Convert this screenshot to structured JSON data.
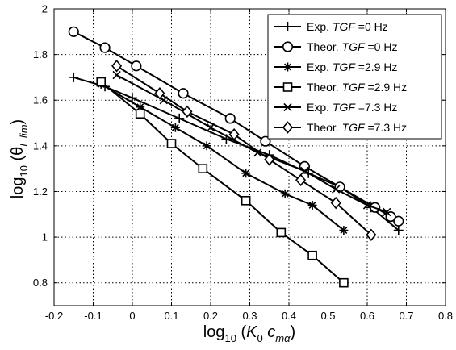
{
  "chart_data": {
    "type": "line",
    "title": "",
    "xlabel": {
      "prefix": "log",
      "sub": "10",
      "open": " (",
      "var1": "K",
      "var1_sub": "0",
      "var2": "c",
      "var2_sub": "mα",
      "close": ")"
    },
    "ylabel": {
      "prefix": "log",
      "sub": "10",
      "open": " (θ",
      "var_sub": "L lim",
      "close": ")"
    },
    "xlim": [
      -0.2,
      0.8
    ],
    "ylim": [
      0.7,
      2.0
    ],
    "xticks": [
      -0.2,
      -0.1,
      0,
      0.1,
      0.2,
      0.3,
      0.4,
      0.5,
      0.6,
      0.7,
      0.8
    ],
    "xtick_labels": [
      "-0.2",
      "-0.1",
      "0",
      "0.1",
      "0.2",
      "0.3",
      "0.4",
      "0.5",
      "0.6",
      "0.7",
      "0.8"
    ],
    "yticks": [
      0.8,
      1.0,
      1.2,
      1.4,
      1.6,
      1.8,
      2.0
    ],
    "ytick_labels": [
      "0.8",
      "1",
      "1.2",
      "1.4",
      "1.6",
      "1.8",
      "2"
    ],
    "grid": true,
    "legend_position": "top-right",
    "series": [
      {
        "legend_prefix": "Exp. ",
        "legend_var": "TGF",
        "legend_suffix": " =0 Hz",
        "marker": "plus",
        "color": "#000000",
        "x": [
          -0.15,
          -0.07,
          0.0,
          0.12,
          0.24,
          0.35,
          0.45,
          0.53,
          0.61,
          0.68
        ],
        "y": [
          1.7,
          1.66,
          1.61,
          1.52,
          1.43,
          1.36,
          1.28,
          1.22,
          1.13,
          1.03
        ]
      },
      {
        "legend_prefix": "Theor. ",
        "legend_var": "TGF",
        "legend_suffix": " =0 Hz",
        "marker": "circle",
        "color": "#000000",
        "x": [
          -0.15,
          -0.07,
          0.01,
          0.13,
          0.25,
          0.34,
          0.44,
          0.53,
          0.62,
          0.66,
          0.68
        ],
        "y": [
          1.9,
          1.83,
          1.75,
          1.63,
          1.52,
          1.42,
          1.31,
          1.22,
          1.13,
          1.09,
          1.07
        ]
      },
      {
        "legend_prefix": "Exp. ",
        "legend_var": "TGF",
        "legend_suffix": " =2.9 Hz",
        "marker": "asterisk",
        "color": "#000000",
        "x": [
          -0.08,
          0.02,
          0.11,
          0.19,
          0.29,
          0.39,
          0.46,
          0.54
        ],
        "y": [
          1.67,
          1.57,
          1.48,
          1.4,
          1.28,
          1.19,
          1.14,
          1.03
        ]
      },
      {
        "legend_prefix": "Theor. ",
        "legend_var": "TGF",
        "legend_suffix": " =2.9 Hz",
        "marker": "square",
        "color": "#000000",
        "x": [
          -0.08,
          0.02,
          0.1,
          0.18,
          0.29,
          0.38,
          0.46,
          0.54
        ],
        "y": [
          1.68,
          1.54,
          1.41,
          1.3,
          1.16,
          1.02,
          0.92,
          0.8
        ]
      },
      {
        "legend_prefix": "Exp. ",
        "legend_var": "TGF",
        "legend_suffix": " =7.3 Hz",
        "marker": "x",
        "color": "#000000",
        "x": [
          -0.04,
          0.08,
          0.2,
          0.32,
          0.44,
          0.52,
          0.6,
          0.65
        ],
        "y": [
          1.71,
          1.6,
          1.48,
          1.37,
          1.29,
          1.21,
          1.14,
          1.11
        ]
      },
      {
        "legend_prefix": "Theor. ",
        "legend_var": "TGF",
        "legend_suffix": " =7.3 Hz",
        "marker": "diamond",
        "color": "#000000",
        "x": [
          -0.04,
          0.07,
          0.14,
          0.26,
          0.35,
          0.43,
          0.52,
          0.61
        ],
        "y": [
          1.75,
          1.63,
          1.55,
          1.45,
          1.34,
          1.25,
          1.15,
          1.01
        ]
      }
    ]
  }
}
